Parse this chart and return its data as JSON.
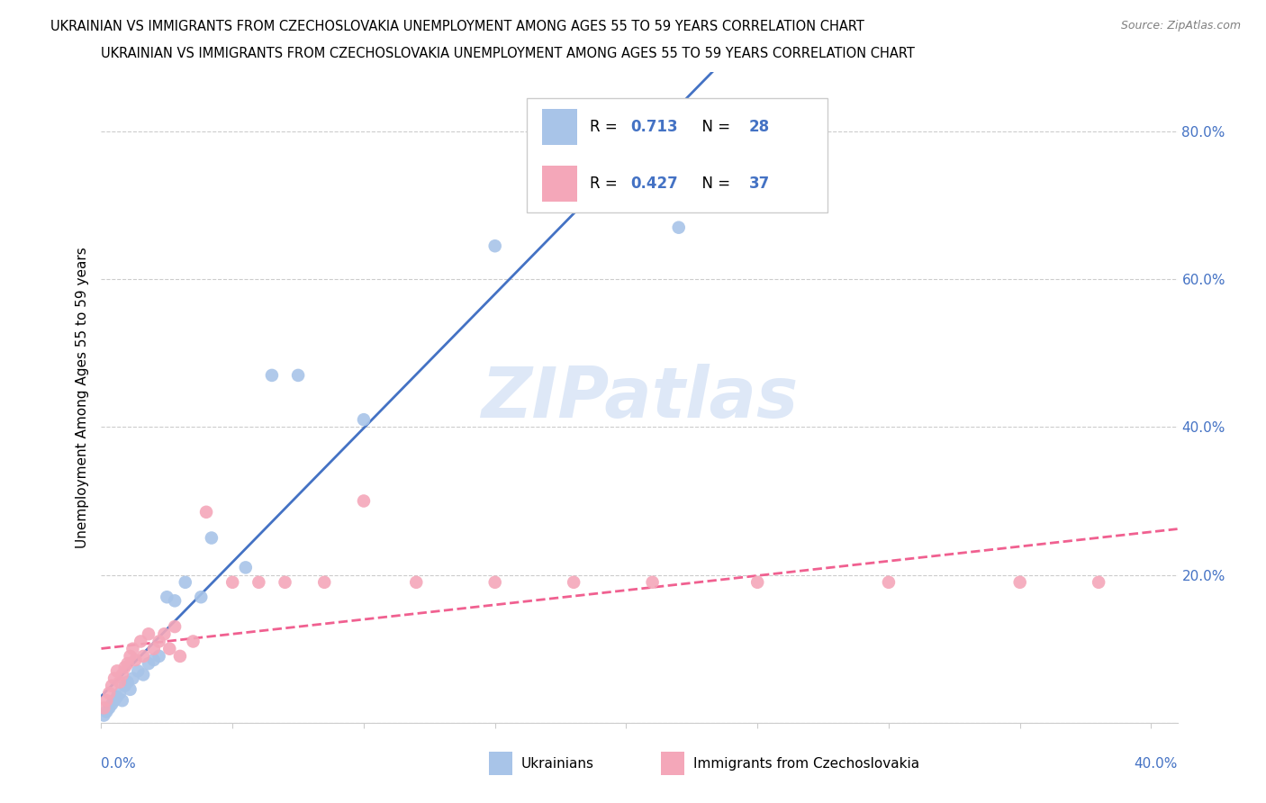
{
  "title": "UKRAINIAN VS IMMIGRANTS FROM CZECHOSLOVAKIA UNEMPLOYMENT AMONG AGES 55 TO 59 YEARS CORRELATION CHART",
  "source": "Source: ZipAtlas.com",
  "ylabel": "Unemployment Among Ages 55 to 59 years",
  "legend_label1": "Ukrainians",
  "legend_label2": "Immigrants from Czechoslovakia",
  "R1": 0.713,
  "N1": 28,
  "R2": 0.427,
  "N2": 37,
  "color_blue": "#a8c4e8",
  "color_pink": "#f4a7b9",
  "color_blue_line": "#4472c4",
  "color_pink_line": "#f06090",
  "color_text_blue": "#4472c4",
  "watermark_color": "#d0dff5",
  "blue_x": [
    0.001,
    0.002,
    0.003,
    0.004,
    0.005,
    0.006,
    0.007,
    0.008,
    0.009,
    0.01,
    0.011,
    0.012,
    0.014,
    0.016,
    0.018,
    0.02,
    0.022,
    0.025,
    0.028,
    0.032,
    0.038,
    0.042,
    0.055,
    0.065,
    0.075,
    0.1,
    0.15,
    0.22
  ],
  "blue_y": [
    0.01,
    0.015,
    0.02,
    0.025,
    0.03,
    0.035,
    0.04,
    0.03,
    0.05,
    0.055,
    0.045,
    0.06,
    0.07,
    0.065,
    0.08,
    0.085,
    0.09,
    0.17,
    0.165,
    0.19,
    0.17,
    0.25,
    0.21,
    0.47,
    0.47,
    0.41,
    0.645,
    0.67
  ],
  "pink_x": [
    0.001,
    0.002,
    0.003,
    0.004,
    0.005,
    0.006,
    0.007,
    0.008,
    0.009,
    0.01,
    0.011,
    0.012,
    0.013,
    0.015,
    0.016,
    0.018,
    0.02,
    0.022,
    0.024,
    0.026,
    0.028,
    0.03,
    0.035,
    0.04,
    0.05,
    0.06,
    0.07,
    0.085,
    0.1,
    0.12,
    0.15,
    0.18,
    0.21,
    0.25,
    0.3,
    0.35,
    0.38
  ],
  "pink_y": [
    0.02,
    0.03,
    0.04,
    0.05,
    0.06,
    0.07,
    0.055,
    0.065,
    0.075,
    0.08,
    0.09,
    0.1,
    0.085,
    0.11,
    0.09,
    0.12,
    0.1,
    0.11,
    0.12,
    0.1,
    0.13,
    0.09,
    0.11,
    0.285,
    0.19,
    0.19,
    0.19,
    0.19,
    0.3,
    0.19,
    0.19,
    0.19,
    0.19,
    0.19,
    0.19,
    0.19,
    0.19
  ],
  "xlim": [
    0.0,
    0.41
  ],
  "ylim": [
    0.0,
    0.88
  ],
  "yticks": [
    0.0,
    0.2,
    0.4,
    0.6,
    0.8
  ],
  "ytick_labels": [
    "",
    "20.0%",
    "40.0%",
    "60.0%",
    "80.0%"
  ],
  "xticks": [
    0.0,
    0.05,
    0.1,
    0.15,
    0.2,
    0.25,
    0.3,
    0.35,
    0.4
  ]
}
